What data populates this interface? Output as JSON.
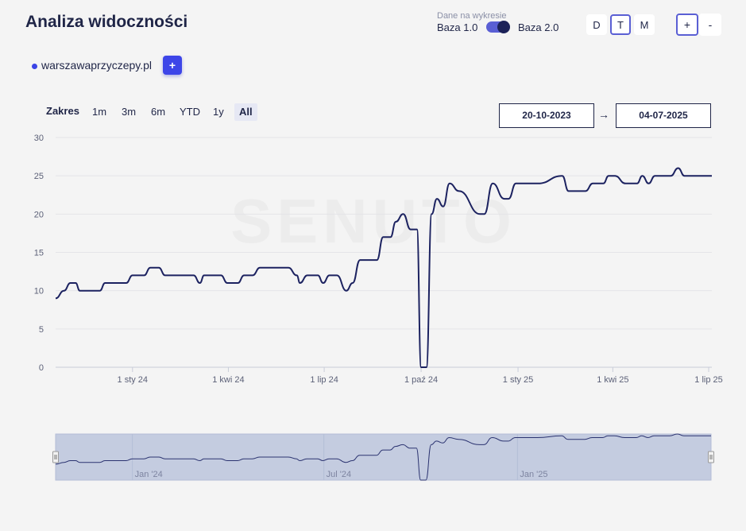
{
  "header": {
    "title": "Analiza widoczności",
    "data_label": "Dane na wykresie",
    "base_left": "Baza 1.0",
    "base_right": "Baza 2.0",
    "base_toggle_on": true,
    "periods": [
      "D",
      "T",
      "M"
    ],
    "active_period": "T",
    "zoom_in": "+",
    "zoom_out": "-"
  },
  "domain": {
    "name": "warszawaprzyczepy.pl",
    "color": "#3b44e6",
    "add_label": "+"
  },
  "range": {
    "label": "Zakres",
    "options": [
      "1m",
      "3m",
      "6m",
      "YTD",
      "1y",
      "All"
    ],
    "active": "All",
    "from": "20-10-2023",
    "arrow": "→",
    "to": "04-07-2025"
  },
  "chart_data": {
    "type": "line",
    "title": "",
    "xlabel": "",
    "ylabel": "",
    "ylim": [
      0,
      30
    ],
    "yticks": [
      0,
      5,
      10,
      15,
      20,
      25,
      30
    ],
    "grid": true,
    "line_color": "#1c2260",
    "x_range": [
      "2023-10-20",
      "2025-07-04"
    ],
    "x_ticks": [
      {
        "date": "2024-01-01",
        "label": "1 sty 24"
      },
      {
        "date": "2024-04-01",
        "label": "1 kwi 24"
      },
      {
        "date": "2024-07-01",
        "label": "1 lip 24"
      },
      {
        "date": "2024-10-01",
        "label": "1 paź 24"
      },
      {
        "date": "2025-01-01",
        "label": "1 sty 25"
      },
      {
        "date": "2025-04-01",
        "label": "1 kwi 25"
      },
      {
        "date": "2025-07-01",
        "label": "1 lip 25"
      }
    ],
    "series": [
      {
        "name": "",
        "points": [
          [
            "2023-10-20",
            9
          ],
          [
            "2023-10-28",
            10
          ],
          [
            "2023-11-03",
            11
          ],
          [
            "2023-11-08",
            11
          ],
          [
            "2023-11-12",
            10
          ],
          [
            "2023-12-01",
            10
          ],
          [
            "2023-12-06",
            11
          ],
          [
            "2023-12-26",
            11
          ],
          [
            "2024-01-01",
            12
          ],
          [
            "2024-01-12",
            12
          ],
          [
            "2024-01-18",
            13
          ],
          [
            "2024-01-26",
            13
          ],
          [
            "2024-02-01",
            12
          ],
          [
            "2024-02-28",
            12
          ],
          [
            "2024-03-05",
            11
          ],
          [
            "2024-03-09",
            12
          ],
          [
            "2024-03-25",
            12
          ],
          [
            "2024-03-31",
            11
          ],
          [
            "2024-04-10",
            11
          ],
          [
            "2024-04-16",
            12
          ],
          [
            "2024-04-24",
            12
          ],
          [
            "2024-05-01",
            13
          ],
          [
            "2024-05-28",
            13
          ],
          [
            "2024-06-05",
            12
          ],
          [
            "2024-06-08",
            11
          ],
          [
            "2024-06-15",
            12
          ],
          [
            "2024-06-25",
            12
          ],
          [
            "2024-06-30",
            11
          ],
          [
            "2024-07-06",
            12
          ],
          [
            "2024-07-13",
            12
          ],
          [
            "2024-07-22",
            10
          ],
          [
            "2024-07-28",
            11
          ],
          [
            "2024-08-04",
            14
          ],
          [
            "2024-08-20",
            14
          ],
          [
            "2024-08-26",
            17
          ],
          [
            "2024-09-02",
            17
          ],
          [
            "2024-09-07",
            19
          ],
          [
            "2024-09-14",
            20
          ],
          [
            "2024-09-21",
            18
          ],
          [
            "2024-09-27",
            18
          ],
          [
            "2024-10-01",
            0
          ],
          [
            "2024-10-06",
            0
          ],
          [
            "2024-10-11",
            20
          ],
          [
            "2024-10-16",
            22
          ],
          [
            "2024-10-22",
            21
          ],
          [
            "2024-10-28",
            24
          ],
          [
            "2024-11-06",
            23
          ],
          [
            "2024-11-26",
            20
          ],
          [
            "2024-11-30",
            20
          ],
          [
            "2024-12-08",
            24
          ],
          [
            "2024-12-19",
            22
          ],
          [
            "2024-12-23",
            22
          ],
          [
            "2024-12-30",
            24
          ],
          [
            "2025-01-20",
            24
          ],
          [
            "2025-02-12",
            25
          ],
          [
            "2025-02-18",
            23
          ],
          [
            "2025-03-06",
            23
          ],
          [
            "2025-03-13",
            24
          ],
          [
            "2025-03-23",
            24
          ],
          [
            "2025-03-28",
            25
          ],
          [
            "2025-04-03",
            25
          ],
          [
            "2025-04-13",
            24
          ],
          [
            "2025-04-24",
            24
          ],
          [
            "2025-04-29",
            25
          ],
          [
            "2025-05-05",
            24
          ],
          [
            "2025-05-11",
            25
          ],
          [
            "2025-05-26",
            25
          ],
          [
            "2025-06-02",
            26
          ],
          [
            "2025-06-08",
            25
          ],
          [
            "2025-07-04",
            25
          ]
        ]
      }
    ],
    "navigator": {
      "labels": [
        {
          "date": "2024-01-01",
          "label": "Jan '24"
        },
        {
          "date": "2024-07-01",
          "label": "Jul '24"
        },
        {
          "date": "2025-01-01",
          "label": "Jan '25"
        }
      ],
      "fill": "#c4cce0"
    }
  }
}
